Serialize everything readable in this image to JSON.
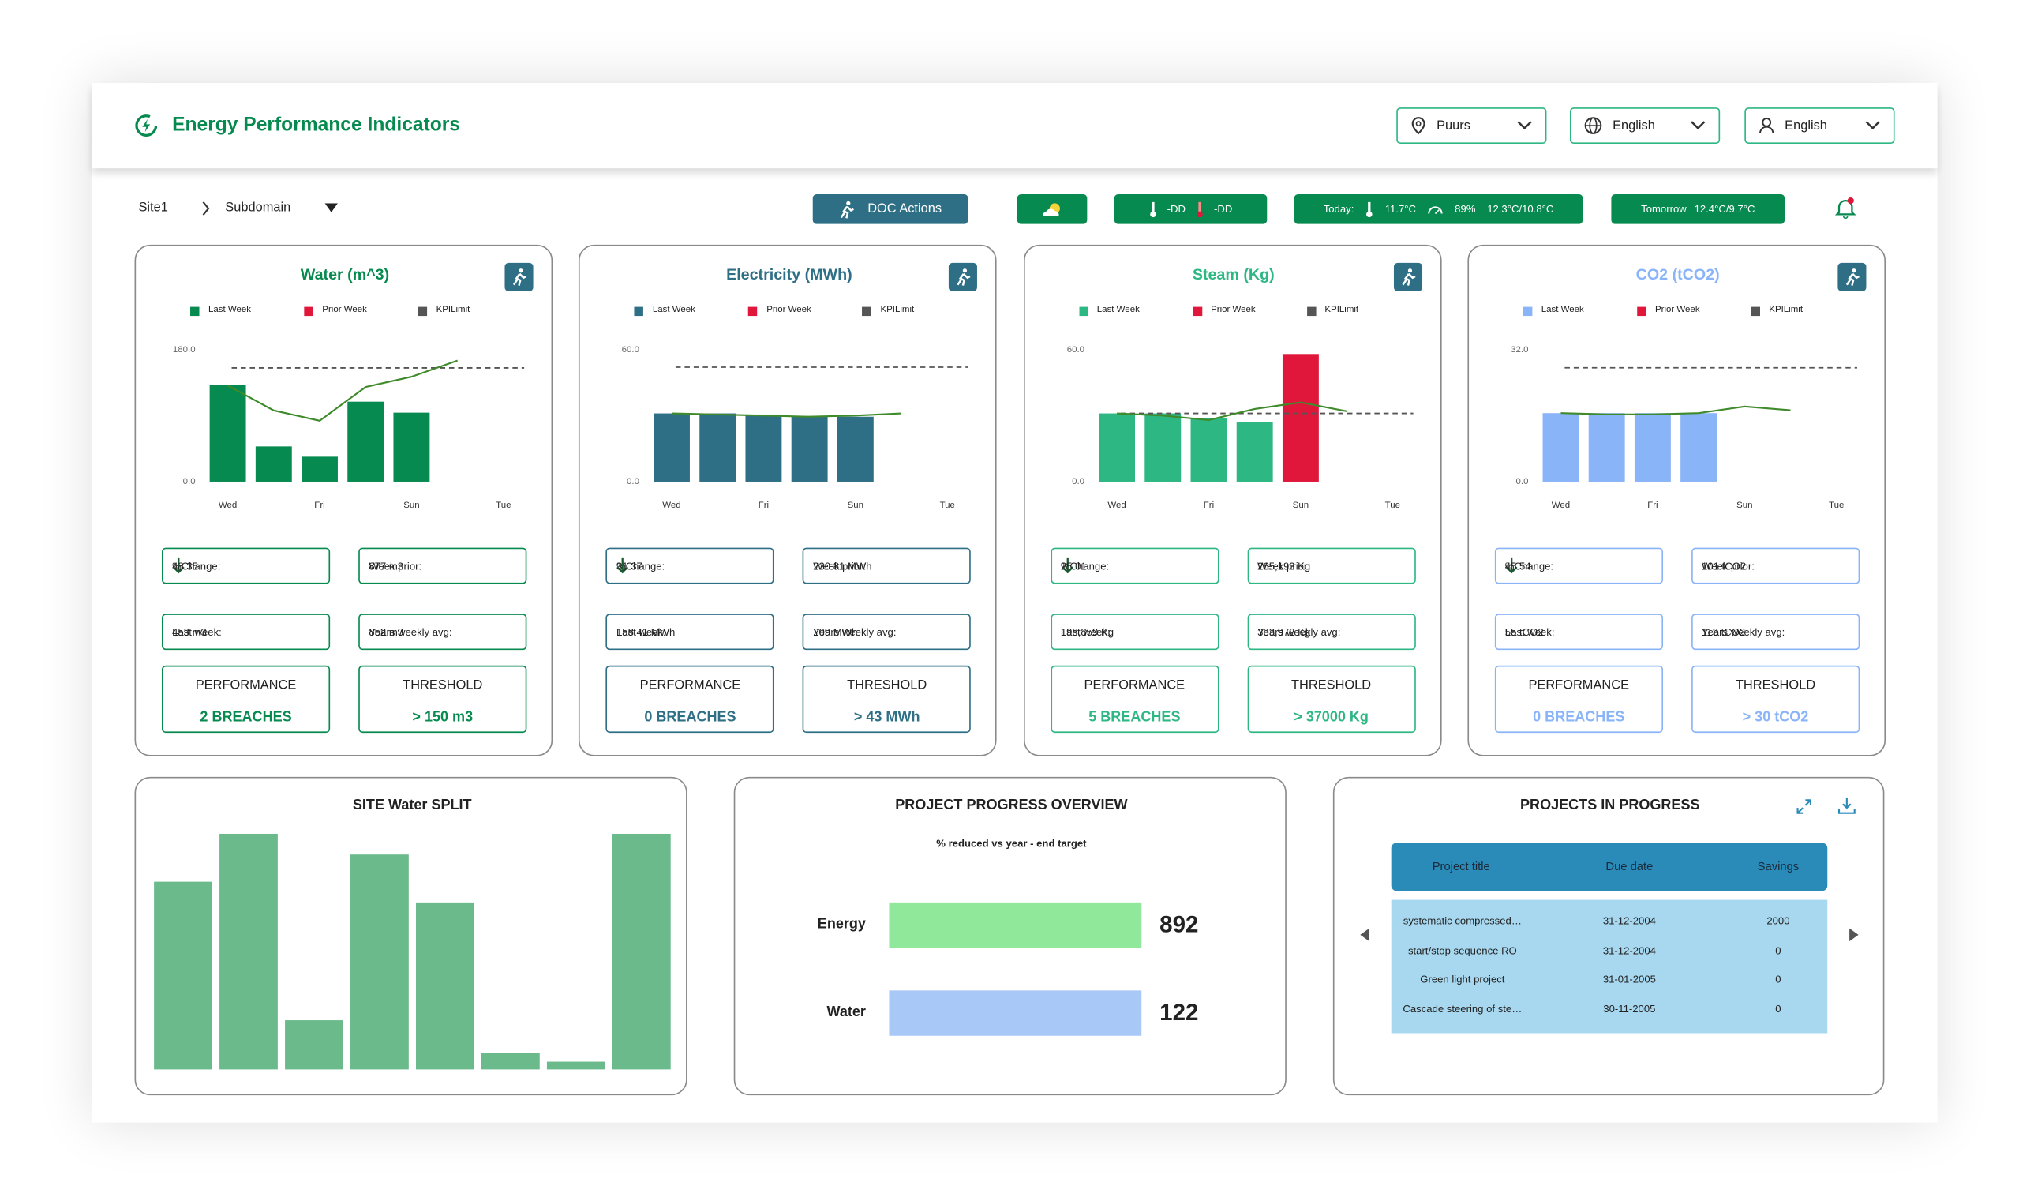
{
  "header": {
    "title": "Energy Performance Indicators",
    "selectors": [
      "Puurs",
      "English",
      "English"
    ]
  },
  "toolbar": {
    "breadcrumb": [
      "Site1",
      "Subdomain"
    ],
    "doc_actions": "DOC Actions",
    "temperature": [
      "-DD",
      "-DD"
    ],
    "today": {
      "label": "Today:",
      "temp": "11.7°C",
      "humidity": "89%",
      "range": "12.3°C/10.8°C"
    },
    "tomorrow": {
      "label": "Tomorrow",
      "range": "12.4°C/9.7°C"
    }
  },
  "cards": [
    {
      "title": "Water (m^3)",
      "color": "#078a4f",
      "chart": {
        "type": "bar",
        "categories": [
          "Wed",
          null,
          "Fri",
          null,
          "Sun",
          null,
          "Tue"
        ],
        "ylim": [
          0,
          180
        ],
        "yticks": [
          {
            "value": 0,
            "label": "0.0"
          },
          {
            "value": 180,
            "label": "180.0"
          }
        ],
        "series": [
          {
            "name": "Last Week",
            "color": "#078a4f",
            "values": [
              132,
              48,
              34,
              109,
              94,
              null,
              null
            ]
          },
          {
            "name": "Prior Week",
            "color": "#e0173a",
            "line_color": "#3f8a2a",
            "values": [
              131,
              97,
              83,
              129,
              143,
              165,
              null
            ]
          },
          {
            "name": "KPILimit",
            "color": "#555555",
            "value": 155
          }
        ]
      },
      "stats": [
        [
          "%Change:",
          "48.35"
        ],
        [
          "Week prior:",
          "877 m3"
        ],
        [
          "Last week:",
          "453 m3"
        ],
        [
          "Years weekly avg:",
          "852 m3"
        ]
      ],
      "performance": [
        "PERFORMANCE",
        "2 BREACHES"
      ],
      "threshold": [
        "THRESHOLD",
        "> 150 m3"
      ]
    },
    {
      "title": "Electricity (MWh)",
      "color": "#2e6f86",
      "chart": {
        "type": "bar",
        "categories": [
          "Wed",
          null,
          "Fri",
          null,
          "Sun",
          null,
          "Tue"
        ],
        "ylim": [
          0,
          60
        ],
        "yticks": [
          {
            "value": 0,
            "label": "0.0"
          },
          {
            "value": 60,
            "label": "60.0"
          }
        ],
        "series": [
          {
            "name": "Last Week",
            "color": "#2e6f86",
            "values": [
              31,
              31,
              30.5,
              29.5,
              29.5,
              null,
              null
            ]
          },
          {
            "name": "Prior Week",
            "color": "#e0173a",
            "line_color": "#3f8a2a",
            "values": [
              31,
              30.5,
              30,
              29.5,
              30,
              31,
              null
            ]
          },
          {
            "name": "KPILimit",
            "color": "#555555",
            "value": 52
          }
        ]
      },
      "stats": [
        [
          "%Change:",
          "31.37"
        ],
        [
          "Week prior:",
          "230.81 MWh"
        ],
        [
          "Last week:",
          "158.41 MWh"
        ],
        [
          "Years weekly avg:",
          "209 MWh"
        ]
      ],
      "performance": [
        "PERFORMANCE",
        "0 BREACHES"
      ],
      "threshold": [
        "THRESHOLD",
        "> 43 MWh"
      ]
    },
    {
      "title": "Steam (Kg)",
      "color": "#2db783",
      "chart": {
        "type": "bar",
        "categories": [
          "Wed",
          null,
          "Fri",
          null,
          "Sun",
          null,
          "Tue"
        ],
        "ylim": [
          0,
          60
        ],
        "yticks": [
          {
            "value": 0,
            "label": "0.0"
          },
          {
            "value": 60,
            "label": "60.0"
          }
        ],
        "series": [
          {
            "name": "Last Week",
            "color": "#2db783",
            "colors": [
              "#2db783",
              "#2db783",
              "#2db783",
              "#2db783",
              "#e0173a",
              null,
              null
            ],
            "values": [
              31,
              31,
              29,
              27,
              58,
              null,
              null
            ]
          },
          {
            "name": "Prior Week",
            "color": "#e0173a",
            "line_color": "#3f8a2a",
            "values": [
              31,
              30,
              28,
              33,
              36,
              32,
              null
            ]
          },
          {
            "name": "KPILimit",
            "color": "#555555",
            "value": 31
          }
        ]
      },
      "stats": [
        [
          "%Change:",
          "25.01"
        ],
        [
          "Week prior:",
          "265,193 Kg"
        ],
        [
          "Last week:",
          "198,859 Kg"
        ],
        [
          "Years weekly avg:",
          "333,972 Kg"
        ]
      ],
      "performance": [
        "PERFORMANCE",
        "5 BREACHES"
      ],
      "threshold": [
        "THRESHOLD",
        "> 37000 Kg"
      ]
    },
    {
      "title": "CO2 (tCO2)",
      "color": "#8ab4f8",
      "chart": {
        "type": "bar",
        "categories": [
          "Wed",
          null,
          "Fri",
          null,
          "Sun",
          null,
          "Tue"
        ],
        "ylim": [
          0,
          32
        ],
        "yticks": [
          {
            "value": 0,
            "label": "0.0"
          },
          {
            "value": 32,
            "label": "32.0"
          }
        ],
        "series": [
          {
            "name": "Last Week",
            "color": "#8ab4f8",
            "values": [
              16.6,
              16.6,
              16.6,
              16.6,
              null,
              null,
              null
            ]
          },
          {
            "name": "Prior Week",
            "color": "#e0173a",
            "line_color": "#3f8a2a",
            "values": [
              16.6,
              16.3,
              16.3,
              16.6,
              18.2,
              17.3,
              null
            ]
          },
          {
            "name": "KPILimit",
            "color": "#555555",
            "value": 27.6
          }
        ]
      },
      "stats": [
        [
          "%Change:",
          "45.54"
        ],
        [
          "Week prior:",
          "101 tCO2"
        ],
        [
          "Last week:",
          "55 tCO2"
        ],
        [
          "Years weekly avg:",
          "113 tCO2"
        ]
      ],
      "performance": [
        "PERFORMANCE",
        "0 BREACHES"
      ],
      "threshold": [
        "THRESHOLD",
        "> 30 tCO2"
      ]
    }
  ],
  "water_split": {
    "title": "SITE Water SPLIT",
    "chart": {
      "type": "bar",
      "color": "#6aba8c",
      "ylim": [
        0,
        190
      ],
      "values": [
        145,
        182,
        38,
        166,
        129,
        13,
        6,
        182
      ]
    }
  },
  "progress": {
    "title": "PROJECT PROGRESS OVERVIEW",
    "subtitle": "% reduced vs year - end target",
    "items": [
      {
        "name": "Energy",
        "value": 892,
        "color": "#90e89a"
      },
      {
        "name": "Water",
        "value": 122,
        "color": "#a8c8f8"
      }
    ]
  },
  "projects": {
    "title": "PROJECTS IN PROGRESS",
    "columns": [
      "Project title",
      "Due date",
      "Savings"
    ],
    "rows": [
      [
        "systematic compressed…",
        "31-12-2004",
        "2000"
      ],
      [
        "start/stop sequence RO",
        "31-12-2004",
        "0"
      ],
      [
        "Green light project",
        "31-01-2005",
        "0"
      ],
      [
        "Cascade steering of ste…",
        "30-11-2005",
        "0"
      ]
    ]
  }
}
